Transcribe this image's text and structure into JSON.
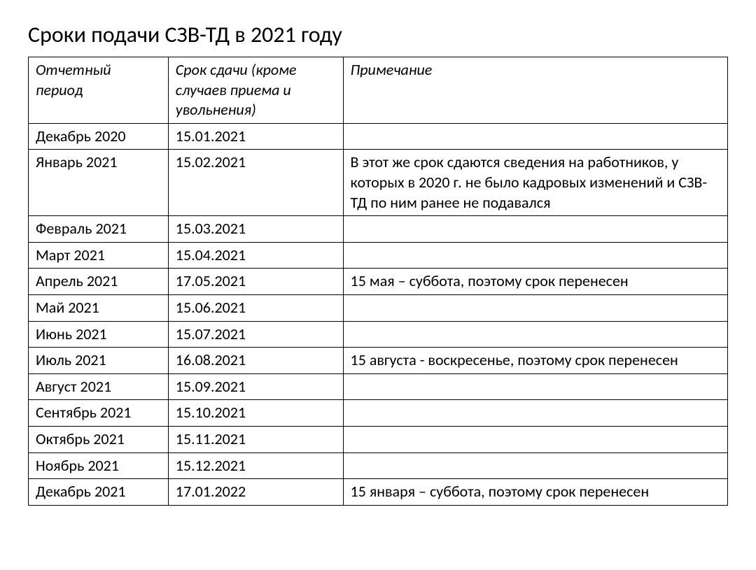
{
  "title": "Сроки подачи СЗВ-ТД в 2021 году",
  "table": {
    "columns": [
      "Отчетный период",
      "Срок сдачи (кроме случаев приема и увольнения)",
      "Примечание"
    ],
    "column_widths_pct": [
      20,
      25,
      55
    ],
    "rows": [
      [
        "Декабрь 2020",
        "15.01.2021",
        ""
      ],
      [
        "Январь 2021",
        "15.02.2021",
        "В этот же срок сдаются сведения на работников, у которых в 2020 г. не было кадровых изменений и СЗВ-ТД по ним ранее не подавался"
      ],
      [
        "Февраль 2021",
        "15.03.2021",
        ""
      ],
      [
        "Март 2021",
        "15.04.2021",
        ""
      ],
      [
        "Апрель 2021",
        "17.05.2021",
        "15 мая – суббота, поэтому срок перенесен"
      ],
      [
        "Май 2021",
        "15.06.2021",
        ""
      ],
      [
        "Июнь 2021",
        "15.07.2021",
        ""
      ],
      [
        " Июль 2021",
        "16.08.2021",
        "15 августа - воскресенье, поэтому срок перенесен"
      ],
      [
        "Август 2021",
        "15.09.2021",
        ""
      ],
      [
        "Сентябрь 2021",
        "15.10.2021",
        ""
      ],
      [
        "Октябрь 2021",
        "15.11.2021",
        ""
      ],
      [
        "Ноябрь 2021",
        "15.12.2021",
        ""
      ],
      [
        "Декабрь 2021",
        "17.01.2022",
        "15 января – суббота, поэтому срок перенесен"
      ]
    ],
    "border_color": "#000000",
    "background_color": "#ffffff",
    "header_font_style": "italic",
    "body_fontsize": 22,
    "title_fontsize": 32
  }
}
